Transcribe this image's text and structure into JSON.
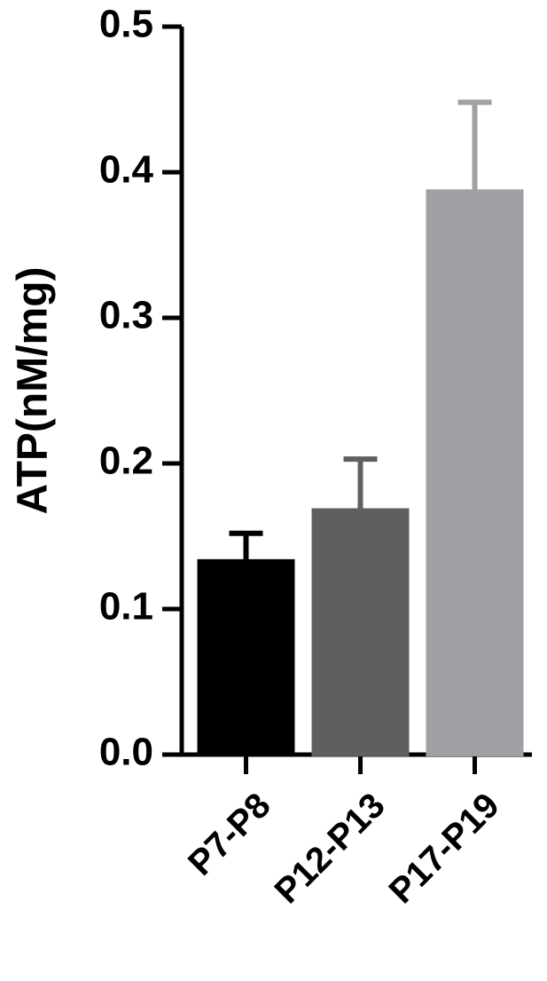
{
  "chart_data": {
    "type": "bar",
    "y_label": "ATP(nM/mg)",
    "categories": [
      "P7-P8",
      "P12-P13",
      "P17-P19"
    ],
    "values": [
      0.133,
      0.168,
      0.387
    ],
    "errors": [
      0.019,
      0.035,
      0.061
    ],
    "colors": [
      "#000000",
      "#5f5f5f",
      "#a0a0a4"
    ],
    "ylim": [
      0,
      0.5
    ],
    "yticks": [
      {
        "value": 0,
        "label": "0.0"
      },
      0.1,
      0.2,
      0.3,
      0.4,
      0.5
    ],
    "grid": false
  }
}
